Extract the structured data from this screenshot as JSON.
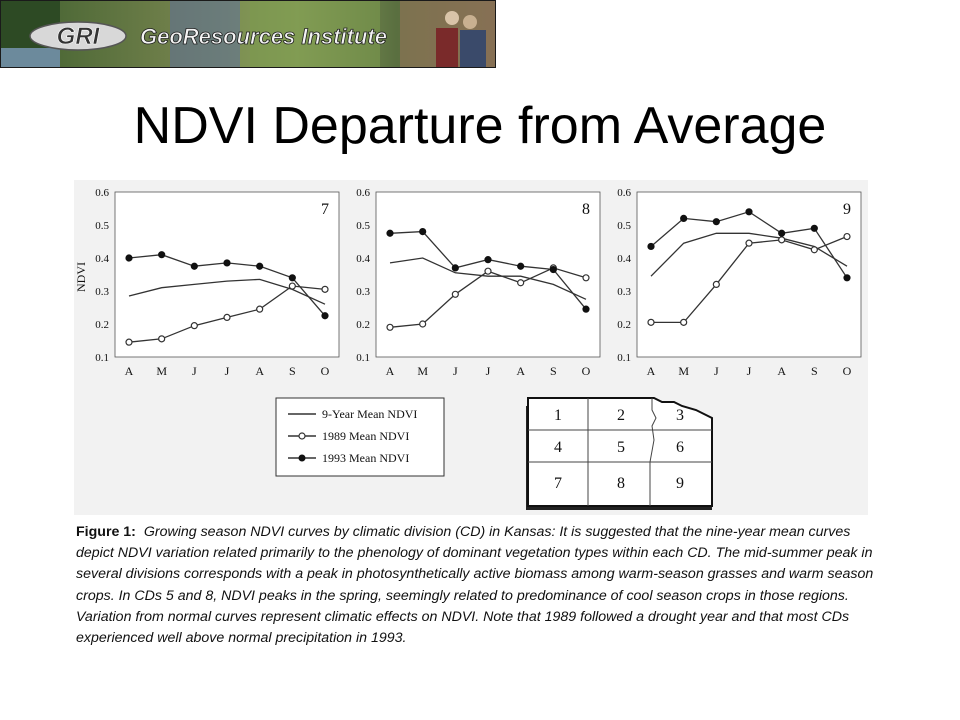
{
  "banner": {
    "logo_text": "GRI",
    "org_name": "GeoResources Institute"
  },
  "slide": {
    "title": "NDVI Departure from Average"
  },
  "chart_data": [
    {
      "type": "line",
      "panel_label": "7",
      "ylabel": "NDVI",
      "categories": [
        "A",
        "M",
        "J",
        "J",
        "A",
        "S",
        "O"
      ],
      "ylim": [
        0.1,
        0.6
      ],
      "yticks": [
        "0.1",
        "0.2",
        "0.3",
        "0.4",
        "0.5",
        "0.6"
      ],
      "series": [
        {
          "name": "9-Year Mean NDVI",
          "marker": "none",
          "values": [
            0.285,
            0.31,
            0.32,
            0.33,
            0.335,
            0.305,
            0.26
          ]
        },
        {
          "name": "1989 Mean NDVI",
          "marker": "open",
          "values": [
            0.145,
            0.155,
            0.195,
            0.22,
            0.245,
            0.315,
            0.305
          ]
        },
        {
          "name": "1993 Mean NDVI",
          "marker": "filled",
          "values": [
            0.4,
            0.41,
            0.375,
            0.385,
            0.375,
            0.34,
            0.225
          ]
        }
      ]
    },
    {
      "type": "line",
      "panel_label": "8",
      "ylabel": "",
      "categories": [
        "A",
        "M",
        "J",
        "J",
        "A",
        "S",
        "O"
      ],
      "ylim": [
        0.1,
        0.6
      ],
      "yticks": [
        "0.1",
        "0.2",
        "0.3",
        "0.4",
        "0.5",
        "0.6"
      ],
      "series": [
        {
          "name": "9-Year Mean NDVI",
          "marker": "none",
          "values": [
            0.385,
            0.4,
            0.355,
            0.345,
            0.345,
            0.32,
            0.275
          ]
        },
        {
          "name": "1989 Mean NDVI",
          "marker": "open",
          "values": [
            0.19,
            0.2,
            0.29,
            0.36,
            0.325,
            0.37,
            0.34
          ]
        },
        {
          "name": "1993 Mean NDVI",
          "marker": "filled",
          "values": [
            0.475,
            0.48,
            0.37,
            0.395,
            0.375,
            0.365,
            0.245
          ]
        }
      ]
    },
    {
      "type": "line",
      "panel_label": "9",
      "ylabel": "",
      "categories": [
        "A",
        "M",
        "J",
        "J",
        "A",
        "S",
        "O"
      ],
      "ylim": [
        0.1,
        0.6
      ],
      "yticks": [
        "0.1",
        "0.2",
        "0.3",
        "0.4",
        "0.5",
        "0.6"
      ],
      "series": [
        {
          "name": "9-Year Mean NDVI",
          "marker": "none",
          "values": [
            0.345,
            0.445,
            0.475,
            0.475,
            0.46,
            0.435,
            0.375
          ]
        },
        {
          "name": "1989 Mean NDVI",
          "marker": "open",
          "values": [
            0.205,
            0.205,
            0.32,
            0.445,
            0.455,
            0.425,
            0.465
          ]
        },
        {
          "name": "1993 Mean NDVI",
          "marker": "filled",
          "values": [
            0.435,
            0.52,
            0.51,
            0.54,
            0.475,
            0.49,
            0.34
          ]
        }
      ]
    }
  ],
  "legend": {
    "items": [
      {
        "label": "9-Year Mean NDVI",
        "marker": "none"
      },
      {
        "label": "1989 Mean NDVI",
        "marker": "open"
      },
      {
        "label": "1993 Mean NDVI",
        "marker": "filled"
      }
    ]
  },
  "division_map": {
    "divisions": [
      "1",
      "2",
      "3",
      "4",
      "5",
      "6",
      "7",
      "8",
      "9"
    ]
  },
  "caption": {
    "lead": "Figure 1:",
    "body": "Growing season NDVI curves by climatic division (CD) in Kansas: It is suggested that the nine-year mean curves depict NDVI variation related primarily to the phenology of dominant vegetation types within each CD. The mid-summer peak in several divisions corresponds with a peak in photosynthetically active biomass among warm-season grasses and warm season crops. In CDs 5 and 8, NDVI peaks in the spring, seemingly related to predominance of cool season crops in those regions. Variation from normal curves represent climatic effects on NDVI. Note that 1989 followed a drought year and that most CDs experienced well above normal precipitation in 1993."
  },
  "colors": {
    "banner_bg": "#4a6b3a",
    "banner_text": "#ffffff",
    "figure_bg": "#f2f2f2",
    "line": "#333333"
  }
}
